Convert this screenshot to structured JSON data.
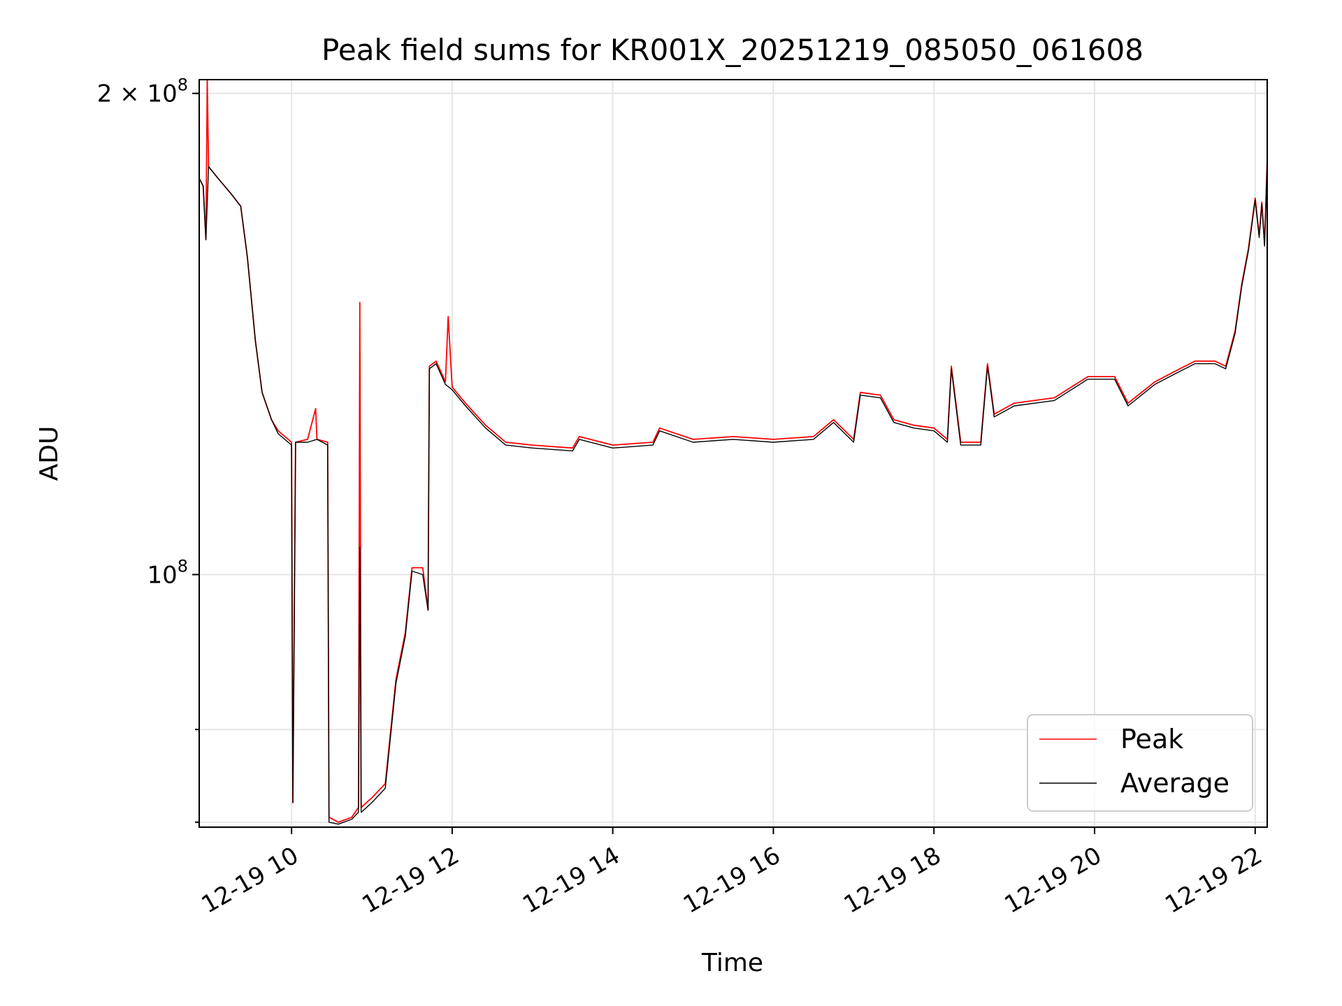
{
  "chart_data": {
    "type": "line",
    "title": "Peak field sums for KR001X_20251219_085050_061608",
    "xlabel": "Time",
    "ylabel": "ADU",
    "yscale": "log",
    "xlim": [
      "2025-12-19 08:51",
      "2025-12-19 22:09"
    ],
    "ylim": [
      69500000,
      204000000
    ],
    "x_ticks": [
      {
        "value": "2025-12-19 10:00",
        "label": "12-19 10"
      },
      {
        "value": "2025-12-19 12:00",
        "label": "12-19 12"
      },
      {
        "value": "2025-12-19 14:00",
        "label": "12-19 14"
      },
      {
        "value": "2025-12-19 16:00",
        "label": "12-19 16"
      },
      {
        "value": "2025-12-19 18:00",
        "label": "12-19 18"
      },
      {
        "value": "2025-12-19 20:00",
        "label": "12-19 20"
      },
      {
        "value": "2025-12-19 22:00",
        "label": "12-19 22"
      }
    ],
    "y_ticks": [
      {
        "value": 100000000,
        "base": "10",
        "exp": "8",
        "coef": ""
      },
      {
        "value": 200000000,
        "base": "10",
        "exp": "8",
        "coef": "2 × "
      }
    ],
    "y_minor_grid": [
      70000000,
      80000000,
      200000000
    ],
    "grid": true,
    "legend": {
      "position": "lower right",
      "entries": [
        "Peak",
        "Average"
      ]
    },
    "series": [
      {
        "name": "Peak",
        "color": "#ff0000",
        "points": [
          [
            "2025-12-19 08:51",
            177000000
          ],
          [
            "2025-12-19 08:54",
            175000000
          ],
          [
            "2025-12-19 08:56",
            162000000
          ],
          [
            "2025-12-19 08:57",
            204000000
          ],
          [
            "2025-12-19 08:58",
            180000000
          ],
          [
            "2025-12-19 09:05",
            177000000
          ],
          [
            "2025-12-19 09:15",
            173000000
          ],
          [
            "2025-12-19 09:22",
            170000000
          ],
          [
            "2025-12-19 09:27",
            158000000
          ],
          [
            "2025-12-19 09:33",
            140000000
          ],
          [
            "2025-12-19 09:38",
            130000000
          ],
          [
            "2025-12-19 09:45",
            125000000
          ],
          [
            "2025-12-19 09:50",
            123000000
          ],
          [
            "2025-12-19 10:00",
            121000000
          ],
          [
            "2025-12-19 10:01",
            72000000
          ],
          [
            "2025-12-19 10:03",
            121000000
          ],
          [
            "2025-12-19 10:12",
            121500000
          ],
          [
            "2025-12-19 10:18",
            127000000
          ],
          [
            "2025-12-19 10:19",
            121500000
          ],
          [
            "2025-12-19 10:27",
            121000000
          ],
          [
            "2025-12-19 10:28",
            70500000
          ],
          [
            "2025-12-19 10:35",
            70000000
          ],
          [
            "2025-12-19 10:45",
            70500000
          ],
          [
            "2025-12-19 10:50",
            71500000
          ],
          [
            "2025-12-19 10:51",
            148000000
          ],
          [
            "2025-12-19 10:52",
            71500000
          ],
          [
            "2025-12-19 11:00",
            72500000
          ],
          [
            "2025-12-19 11:10",
            74000000
          ],
          [
            "2025-12-19 11:18",
            86000000
          ],
          [
            "2025-12-19 11:25",
            92000000
          ],
          [
            "2025-12-19 11:30",
            101000000
          ],
          [
            "2025-12-19 11:38",
            101000000
          ],
          [
            "2025-12-19 11:42",
            95000000
          ],
          [
            "2025-12-19 11:43",
            135000000
          ],
          [
            "2025-12-19 11:48",
            136000000
          ],
          [
            "2025-12-19 11:55",
            132000000
          ],
          [
            "2025-12-19 11:57",
            145000000
          ],
          [
            "2025-12-19 12:00",
            131000000
          ],
          [
            "2025-12-19 12:10",
            128000000
          ],
          [
            "2025-12-19 12:25",
            124000000
          ],
          [
            "2025-12-19 12:40",
            121000000
          ],
          [
            "2025-12-19 13:00",
            120500000
          ],
          [
            "2025-12-19 13:30",
            120000000
          ],
          [
            "2025-12-19 13:35",
            122000000
          ],
          [
            "2025-12-19 14:00",
            120500000
          ],
          [
            "2025-12-19 14:30",
            121000000
          ],
          [
            "2025-12-19 14:35",
            123500000
          ],
          [
            "2025-12-19 15:00",
            121500000
          ],
          [
            "2025-12-19 15:30",
            122000000
          ],
          [
            "2025-12-19 16:00",
            121500000
          ],
          [
            "2025-12-19 16:30",
            122000000
          ],
          [
            "2025-12-19 16:45",
            125000000
          ],
          [
            "2025-12-19 17:00",
            121500000
          ],
          [
            "2025-12-19 17:05",
            130000000
          ],
          [
            "2025-12-19 17:20",
            129500000
          ],
          [
            "2025-12-19 17:30",
            125000000
          ],
          [
            "2025-12-19 17:45",
            124000000
          ],
          [
            "2025-12-19 18:00",
            123500000
          ],
          [
            "2025-12-19 18:10",
            121500000
          ],
          [
            "2025-12-19 18:13",
            135000000
          ],
          [
            "2025-12-19 18:20",
            121000000
          ],
          [
            "2025-12-19 18:35",
            121000000
          ],
          [
            "2025-12-19 18:40",
            135500000
          ],
          [
            "2025-12-19 18:45",
            126000000
          ],
          [
            "2025-12-19 19:00",
            128000000
          ],
          [
            "2025-12-19 19:30",
            129000000
          ],
          [
            "2025-12-19 19:55",
            133000000
          ],
          [
            "2025-12-19 20:15",
            133000000
          ],
          [
            "2025-12-19 20:25",
            128000000
          ],
          [
            "2025-12-19 20:45",
            132000000
          ],
          [
            "2025-12-19 21:00",
            134000000
          ],
          [
            "2025-12-19 21:15",
            136000000
          ],
          [
            "2025-12-19 21:30",
            136000000
          ],
          [
            "2025-12-19 21:38",
            135000000
          ],
          [
            "2025-12-19 21:45",
            142000000
          ],
          [
            "2025-12-19 21:50",
            152000000
          ],
          [
            "2025-12-19 21:55",
            160000000
          ],
          [
            "2025-12-19 22:00",
            172000000
          ],
          [
            "2025-12-19 22:03",
            163000000
          ],
          [
            "2025-12-19 22:05",
            171000000
          ],
          [
            "2025-12-19 22:07",
            161000000
          ],
          [
            "2025-12-19 22:09",
            182000000
          ]
        ]
      },
      {
        "name": "Average",
        "color": "#000000",
        "points": [
          [
            "2025-12-19 08:51",
            177000000
          ],
          [
            "2025-12-19 08:54",
            175000000
          ],
          [
            "2025-12-19 08:56",
            162000000
          ],
          [
            "2025-12-19 08:58",
            180000000
          ],
          [
            "2025-12-19 09:05",
            177000000
          ],
          [
            "2025-12-19 09:15",
            173000000
          ],
          [
            "2025-12-19 09:22",
            170000000
          ],
          [
            "2025-12-19 09:27",
            158000000
          ],
          [
            "2025-12-19 09:33",
            140000000
          ],
          [
            "2025-12-19 09:38",
            130000000
          ],
          [
            "2025-12-19 09:45",
            125000000
          ],
          [
            "2025-12-19 09:50",
            122500000
          ],
          [
            "2025-12-19 10:00",
            120500000
          ],
          [
            "2025-12-19 10:01",
            72000000
          ],
          [
            "2025-12-19 10:03",
            121000000
          ],
          [
            "2025-12-19 10:12",
            121000000
          ],
          [
            "2025-12-19 10:19",
            121500000
          ],
          [
            "2025-12-19 10:27",
            120500000
          ],
          [
            "2025-12-19 10:28",
            70000000
          ],
          [
            "2025-12-19 10:35",
            69800000
          ],
          [
            "2025-12-19 10:45",
            70300000
          ],
          [
            "2025-12-19 10:50",
            71000000
          ],
          [
            "2025-12-19 10:51",
            104000000
          ],
          [
            "2025-12-19 10:52",
            71000000
          ],
          [
            "2025-12-19 11:00",
            72000000
          ],
          [
            "2025-12-19 11:10",
            73500000
          ],
          [
            "2025-12-19 11:18",
            85500000
          ],
          [
            "2025-12-19 11:25",
            91500000
          ],
          [
            "2025-12-19 11:30",
            100500000
          ],
          [
            "2025-12-19 11:38",
            100000000
          ],
          [
            "2025-12-19 11:42",
            95000000
          ],
          [
            "2025-12-19 11:43",
            134500000
          ],
          [
            "2025-12-19 11:48",
            135500000
          ],
          [
            "2025-12-19 11:55",
            131500000
          ],
          [
            "2025-12-19 12:00",
            130500000
          ],
          [
            "2025-12-19 12:10",
            127500000
          ],
          [
            "2025-12-19 12:25",
            123500000
          ],
          [
            "2025-12-19 12:40",
            120500000
          ],
          [
            "2025-12-19 13:00",
            120000000
          ],
          [
            "2025-12-19 13:30",
            119500000
          ],
          [
            "2025-12-19 13:35",
            121500000
          ],
          [
            "2025-12-19 14:00",
            120000000
          ],
          [
            "2025-12-19 14:30",
            120500000
          ],
          [
            "2025-12-19 14:35",
            123000000
          ],
          [
            "2025-12-19 15:00",
            121000000
          ],
          [
            "2025-12-19 15:30",
            121500000
          ],
          [
            "2025-12-19 16:00",
            121000000
          ],
          [
            "2025-12-19 16:30",
            121500000
          ],
          [
            "2025-12-19 16:45",
            124500000
          ],
          [
            "2025-12-19 17:00",
            121000000
          ],
          [
            "2025-12-19 17:05",
            129500000
          ],
          [
            "2025-12-19 17:20",
            129000000
          ],
          [
            "2025-12-19 17:30",
            124500000
          ],
          [
            "2025-12-19 17:45",
            123500000
          ],
          [
            "2025-12-19 18:00",
            123000000
          ],
          [
            "2025-12-19 18:10",
            121000000
          ],
          [
            "2025-12-19 18:13",
            134500000
          ],
          [
            "2025-12-19 18:20",
            120500000
          ],
          [
            "2025-12-19 18:35",
            120500000
          ],
          [
            "2025-12-19 18:40",
            135000000
          ],
          [
            "2025-12-19 18:45",
            125500000
          ],
          [
            "2025-12-19 19:00",
            127500000
          ],
          [
            "2025-12-19 19:30",
            128500000
          ],
          [
            "2025-12-19 19:55",
            132500000
          ],
          [
            "2025-12-19 20:15",
            132500000
          ],
          [
            "2025-12-19 20:25",
            127500000
          ],
          [
            "2025-12-19 20:45",
            131500000
          ],
          [
            "2025-12-19 21:00",
            133500000
          ],
          [
            "2025-12-19 21:15",
            135500000
          ],
          [
            "2025-12-19 21:30",
            135500000
          ],
          [
            "2025-12-19 21:38",
            134500000
          ],
          [
            "2025-12-19 21:45",
            141500000
          ],
          [
            "2025-12-19 21:50",
            151500000
          ],
          [
            "2025-12-19 21:55",
            159500000
          ],
          [
            "2025-12-19 22:00",
            171500000
          ],
          [
            "2025-12-19 22:03",
            162500000
          ],
          [
            "2025-12-19 22:05",
            170500000
          ],
          [
            "2025-12-19 22:07",
            160500000
          ],
          [
            "2025-12-19 22:09",
            181000000
          ]
        ]
      }
    ]
  }
}
